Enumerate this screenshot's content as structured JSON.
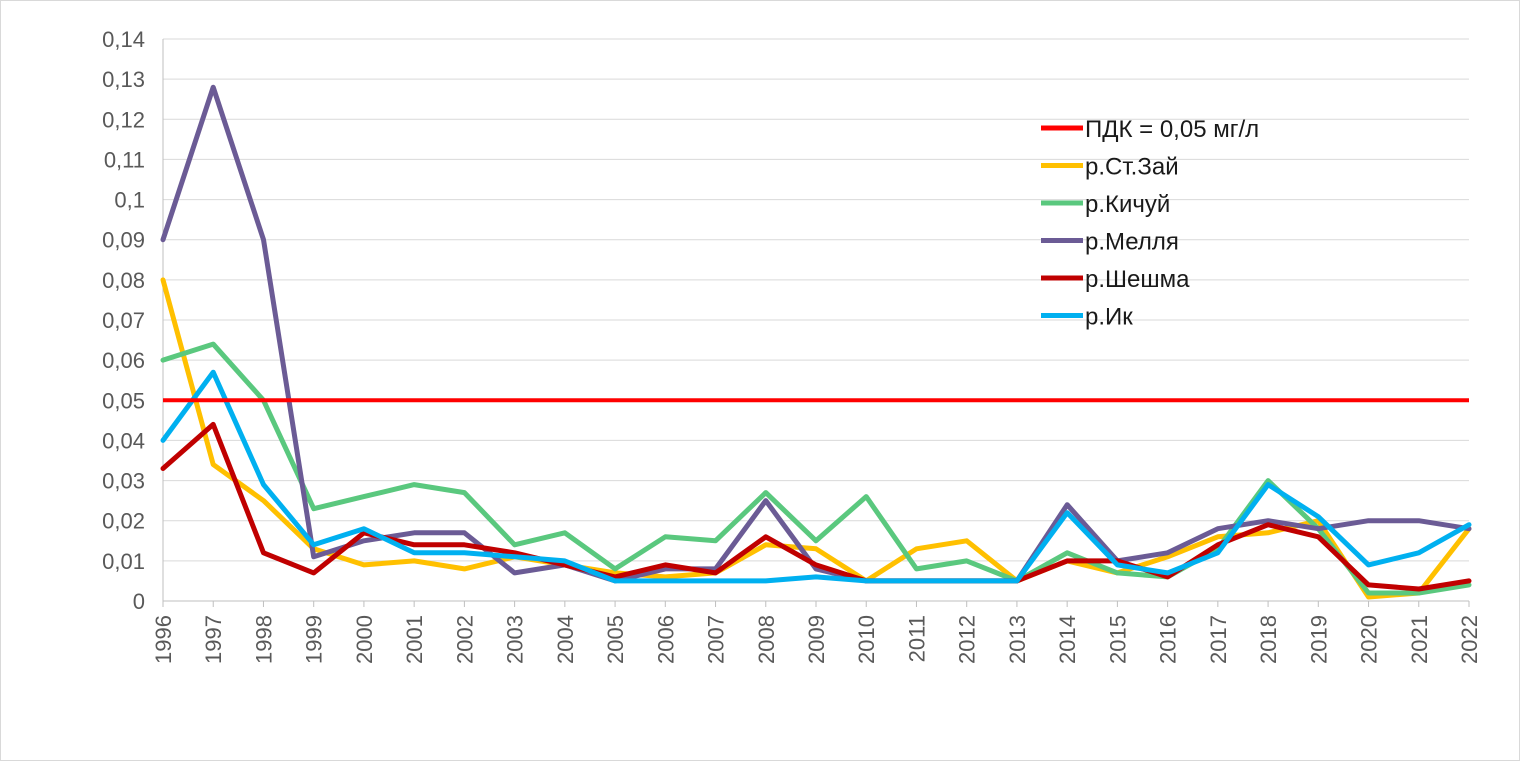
{
  "chart_data": {
    "type": "line",
    "title": "",
    "xlabel": "",
    "ylabel": "",
    "ylim": [
      0,
      0.14
    ],
    "ytick_step": 0.01,
    "grid": "horizontal",
    "legend_position": "top-right",
    "x": [
      "1996",
      "1997",
      "1998",
      "1999",
      "2000",
      "2001",
      "2002",
      "2003",
      "2004",
      "2005",
      "2006",
      "2007",
      "2008",
      "2009",
      "2010",
      "2011",
      "2012",
      "2013",
      "2014",
      "2015",
      "2016",
      "2017",
      "2018",
      "2019",
      "2020",
      "2021",
      "2022"
    ],
    "reference_line": {
      "name": "ПДК = 0,05 мг/л",
      "value": 0.05,
      "color": "#ff0000"
    },
    "series": [
      {
        "name": "р.Ст.Зай",
        "color": "#ffc000",
        "values": [
          0.08,
          0.034,
          0.025,
          0.013,
          0.009,
          0.01,
          0.008,
          0.011,
          0.009,
          0.007,
          0.006,
          0.007,
          0.014,
          0.013,
          0.005,
          0.013,
          0.015,
          0.005,
          0.01,
          0.007,
          0.011,
          0.016,
          0.017,
          0.02,
          0.001,
          0.002,
          0.018
        ]
      },
      {
        "name": "р.Кичуй",
        "color": "#5ac87e",
        "values": [
          0.06,
          0.064,
          0.05,
          0.023,
          0.026,
          0.029,
          0.027,
          0.014,
          0.017,
          0.008,
          0.016,
          0.015,
          0.027,
          0.015,
          0.026,
          0.008,
          0.01,
          0.005,
          0.012,
          0.007,
          0.006,
          0.013,
          0.03,
          0.018,
          0.002,
          0.002,
          0.004
        ]
      },
      {
        "name": "р.Мелля",
        "color": "#6b5b95",
        "values": [
          0.09,
          0.128,
          0.09,
          0.011,
          0.015,
          0.017,
          0.017,
          0.007,
          0.009,
          0.005,
          0.008,
          0.008,
          0.025,
          0.008,
          0.005,
          0.005,
          0.005,
          0.005,
          0.024,
          0.01,
          0.012,
          0.018,
          0.02,
          0.018,
          0.02,
          0.02,
          0.018
        ]
      },
      {
        "name": "р.Шешма",
        "color": "#c00000",
        "values": [
          0.033,
          0.044,
          0.012,
          0.007,
          0.017,
          0.014,
          0.014,
          0.012,
          0.009,
          0.006,
          0.009,
          0.007,
          0.016,
          0.009,
          0.005,
          0.005,
          0.005,
          0.005,
          0.01,
          0.01,
          0.006,
          0.014,
          0.019,
          0.016,
          0.004,
          0.003,
          0.005
        ]
      },
      {
        "name": "р.Ик",
        "color": "#00b0f0",
        "values": [
          0.04,
          0.057,
          0.029,
          0.014,
          0.018,
          0.012,
          0.012,
          0.011,
          0.01,
          0.005,
          0.005,
          0.005,
          0.005,
          0.006,
          0.005,
          0.005,
          0.005,
          0.005,
          0.022,
          0.009,
          0.007,
          0.012,
          0.029,
          0.021,
          0.009,
          0.012,
          0.019
        ]
      }
    ]
  }
}
